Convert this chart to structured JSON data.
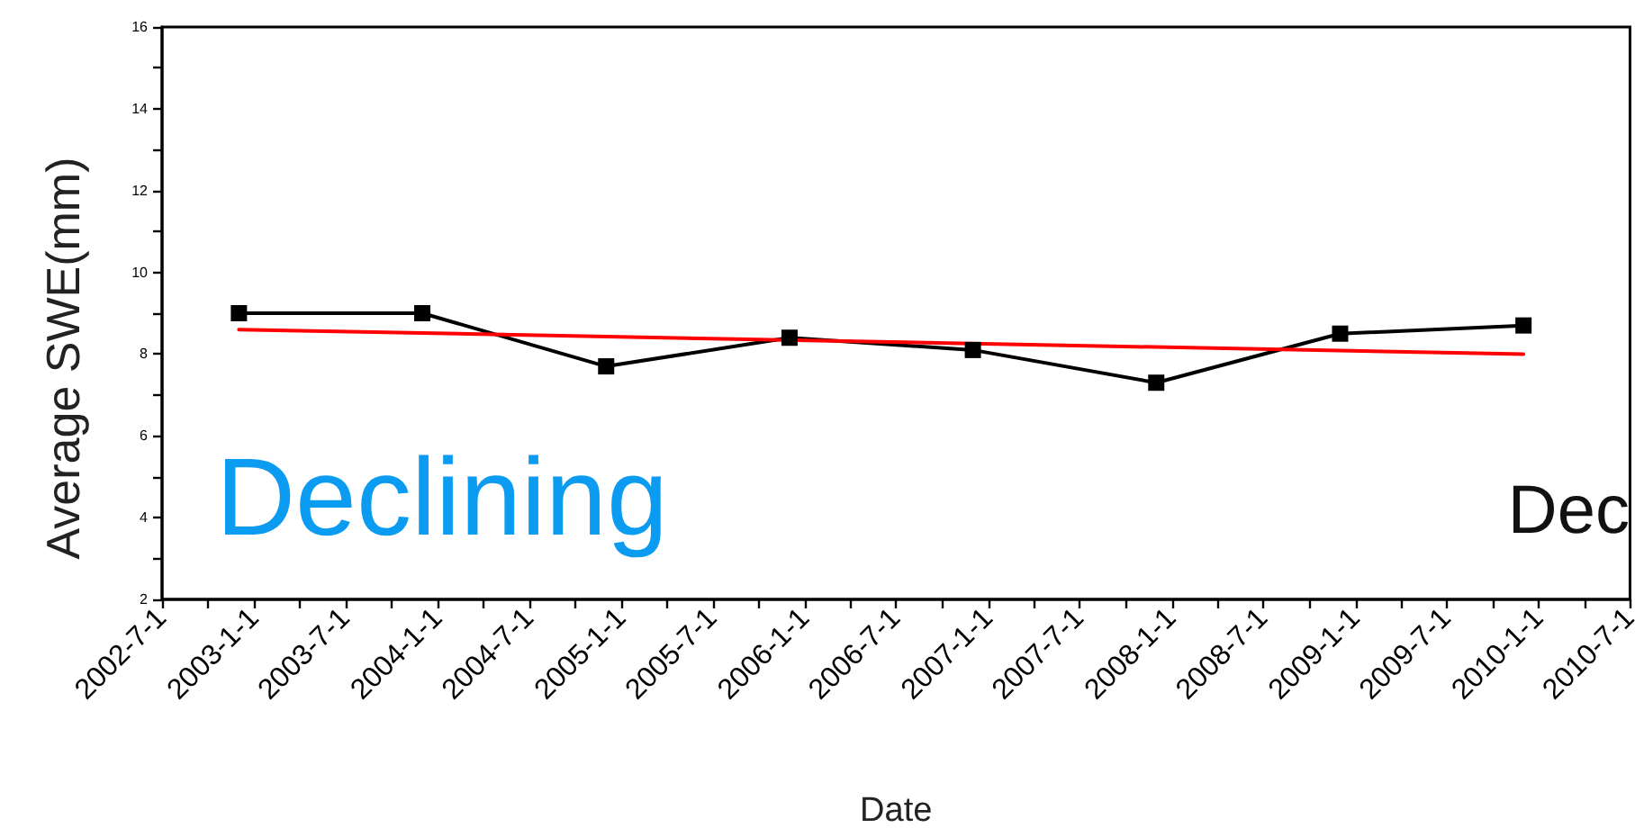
{
  "chart_data": {
    "type": "line",
    "xlabel": "Date",
    "ylabel": "Average SWE(mm)",
    "annotations": [
      "Declining",
      "Dec"
    ],
    "series": [
      {
        "color": "#000000",
        "x": [
          "2002-12-01",
          "2003-12-01",
          "2004-12-01",
          "2005-12-01",
          "2006-12-01",
          "2007-12-01",
          "2008-12-01",
          "2009-12-01"
        ],
        "values": [
          9.0,
          9.0,
          7.7,
          8.4,
          8.1,
          7.3,
          8.5,
          8.7
        ]
      },
      {
        "color": "#ff0000",
        "x": [
          "2002-12-01",
          "2009-12-01"
        ],
        "values": [
          8.6,
          8.0
        ],
        "marker": "none"
      }
    ],
    "xlim": [
      "2002-07-01",
      "2010-07-01"
    ],
    "xticks": [
      {
        "value": "2002-07-01",
        "label": "2002-7-1"
      },
      {
        "value": "2002-10-01",
        "label": null
      },
      {
        "value": "2003-01-01",
        "label": "2003-1-1"
      },
      {
        "value": "2003-04-01",
        "label": null
      },
      {
        "value": "2003-07-01",
        "label": "2003-7-1"
      },
      {
        "value": "2003-10-01",
        "label": null
      },
      {
        "value": "2004-01-01",
        "label": "2004-1-1"
      },
      {
        "value": "2004-04-01",
        "label": null
      },
      {
        "value": "2004-07-01",
        "label": "2004-7-1"
      },
      {
        "value": "2004-10-01",
        "label": null
      },
      {
        "value": "2005-01-01",
        "label": "2005-1-1"
      },
      {
        "value": "2005-04-01",
        "label": null
      },
      {
        "value": "2005-07-01",
        "label": "2005-7-1"
      },
      {
        "value": "2005-10-01",
        "label": null
      },
      {
        "value": "2006-01-01",
        "label": "2006-1-1"
      },
      {
        "value": "2006-04-01",
        "label": null
      },
      {
        "value": "2006-07-01",
        "label": "2006-7-1"
      },
      {
        "value": "2006-10-01",
        "label": null
      },
      {
        "value": "2007-01-01",
        "label": "2007-1-1"
      },
      {
        "value": "2007-04-01",
        "label": null
      },
      {
        "value": "2007-07-01",
        "label": "2007-7-1"
      },
      {
        "value": "2007-10-01",
        "label": null
      },
      {
        "value": "2008-01-01",
        "label": "2008-1-1"
      },
      {
        "value": "2008-04-01",
        "label": null
      },
      {
        "value": "2008-07-01",
        "label": "2008-7-1"
      },
      {
        "value": "2008-10-01",
        "label": null
      },
      {
        "value": "2009-01-01",
        "label": "2009-1-1"
      },
      {
        "value": "2009-04-01",
        "label": null
      },
      {
        "value": "2009-07-01",
        "label": "2009-7-1"
      },
      {
        "value": "2009-10-01",
        "label": null
      },
      {
        "value": "2010-01-01",
        "label": "2010-1-1"
      },
      {
        "value": "2010-04-01",
        "label": null
      },
      {
        "value": "2010-07-01",
        "label": "2010-7-1"
      }
    ],
    "ylim": [
      2,
      16
    ],
    "yticks": [
      2,
      {
        "value": 3,
        "label": null
      },
      4,
      {
        "value": 5,
        "label": null
      },
      6,
      {
        "value": 7,
        "label": null
      },
      8,
      {
        "value": 9,
        "label": null
      },
      10,
      {
        "value": 11,
        "label": null
      },
      12,
      {
        "value": 13,
        "label": null
      },
      14,
      {
        "value": 15,
        "label": null
      },
      16
    ],
    "grid": false,
    "marker": "square",
    "line_style": "solid"
  }
}
